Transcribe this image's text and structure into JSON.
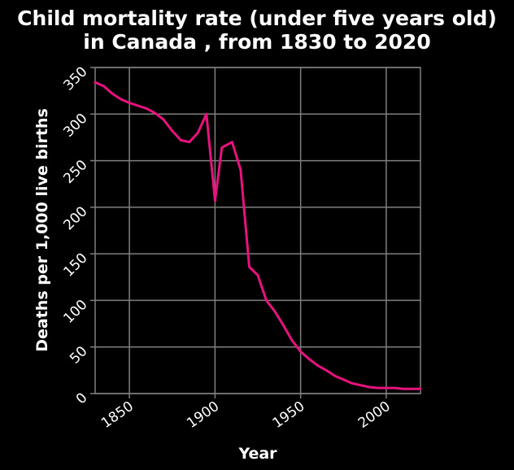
{
  "chart_data": {
    "type": "line",
    "title_lines": [
      "Child mortality rate (under five years old)",
      "in Canada , from 1830 to 2020"
    ],
    "xlabel": "Year",
    "ylabel": "Deaths per 1,000 live births",
    "xlim": [
      1830,
      2020
    ],
    "ylim": [
      0,
      350
    ],
    "xticks": [
      1850,
      1900,
      1950,
      2000
    ],
    "yticks": [
      0,
      50,
      100,
      150,
      200,
      250,
      300,
      350
    ],
    "grid": true,
    "colors": {
      "background": "#000000",
      "line": "#e8127f",
      "grid": "#7f7f7f",
      "text": "#ffffff"
    },
    "series": [
      {
        "x": [
          1830,
          1835,
          1840,
          1845,
          1850,
          1855,
          1860,
          1865,
          1870,
          1875,
          1880,
          1885,
          1890,
          1895,
          1900,
          1904,
          1910,
          1915,
          1920,
          1925,
          1930,
          1935,
          1940,
          1945,
          1950,
          1955,
          1960,
          1965,
          1970,
          1975,
          1980,
          1985,
          1990,
          1995,
          2000,
          2005,
          2010,
          2015,
          2020
        ],
        "y": [
          334,
          330,
          322,
          316,
          312,
          309,
          306,
          301,
          294,
          282,
          272,
          270,
          280,
          300,
          207,
          264,
          270,
          240,
          136,
          127,
          100,
          88,
          73,
          57,
          45,
          37,
          30,
          25,
          19,
          15,
          11,
          9,
          7,
          6,
          6,
          6,
          5,
          5,
          5
        ]
      }
    ]
  }
}
